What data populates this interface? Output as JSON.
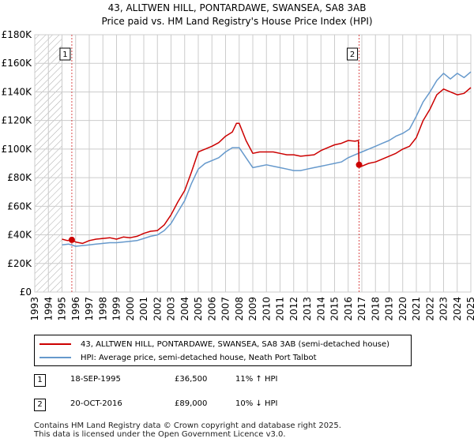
{
  "title": {
    "line1": "43, ALLTWEN HILL, PONTARDAWE, SWANSEA, SA8 3AB",
    "line2": "Price paid vs. HM Land Registry's House Price Index (HPI)"
  },
  "colors": {
    "property": "#cc0000",
    "hpi": "#6699cc",
    "grid": "#cccccc",
    "marker_line": "#cc0000",
    "hatch": "#999999"
  },
  "chart_data": {
    "type": "line",
    "title": "Price paid vs. HM Land Registry's House Price Index (HPI)",
    "xlabel": "",
    "ylabel": "",
    "xlim": [
      1993,
      2025
    ],
    "ylim": [
      0,
      180000
    ],
    "grid": true,
    "y_ticks": [
      {
        "value": 0,
        "label": "£0"
      },
      {
        "value": 20000,
        "label": "£20K"
      },
      {
        "value": 40000,
        "label": "£40K"
      },
      {
        "value": 60000,
        "label": "£60K"
      },
      {
        "value": 80000,
        "label": "£80K"
      },
      {
        "value": 100000,
        "label": "£100K"
      },
      {
        "value": 120000,
        "label": "£120K"
      },
      {
        "value": 140000,
        "label": "£140K"
      },
      {
        "value": 160000,
        "label": "£160K"
      },
      {
        "value": 180000,
        "label": "£180K"
      }
    ],
    "x_ticks": [
      "1993",
      "1994",
      "1995",
      "1996",
      "1997",
      "1998",
      "1999",
      "2000",
      "2001",
      "2002",
      "2003",
      "2004",
      "2005",
      "2006",
      "2007",
      "2008",
      "2009",
      "2010",
      "2011",
      "2012",
      "2013",
      "2014",
      "2015",
      "2016",
      "2017",
      "2018",
      "2019",
      "2020",
      "2021",
      "2022",
      "2023",
      "2024",
      "2025"
    ],
    "hatched_until": 1995.0,
    "series": [
      {
        "name": "43, ALLTWEN HILL, PONTARDAWE, SWANSEA, SA8 3AB (semi-detached house)",
        "color": "#cc0000",
        "x": [
          1995.0,
          1995.4,
          1995.72,
          1996.0,
          1996.5,
          1997.0,
          1997.5,
          1998.0,
          1998.5,
          1999.0,
          1999.5,
          2000.0,
          2000.5,
          2001.0,
          2001.5,
          2002.0,
          2002.5,
          2003.0,
          2003.5,
          2004.0,
          2004.5,
          2005.0,
          2005.5,
          2006.0,
          2006.5,
          2007.0,
          2007.5,
          2007.8,
          2008.0,
          2008.5,
          2009.0,
          2009.5,
          2010.0,
          2010.5,
          2011.0,
          2011.5,
          2012.0,
          2012.5,
          2013.0,
          2013.5,
          2014.0,
          2014.5,
          2015.0,
          2015.5,
          2016.0,
          2016.5,
          2016.75,
          2016.8,
          2017.0,
          2017.5,
          2018.0,
          2018.5,
          2019.0,
          2019.5,
          2020.0,
          2020.5,
          2021.0,
          2021.5,
          2022.0,
          2022.5,
          2023.0,
          2023.5,
          2024.0,
          2024.5,
          2025.0
        ],
        "values": [
          37000,
          36000,
          36500,
          35000,
          34000,
          36000,
          37000,
          37500,
          38000,
          37000,
          38500,
          38000,
          39000,
          41000,
          42500,
          43000,
          47000,
          54000,
          63000,
          71000,
          84000,
          98000,
          100000,
          102000,
          104500,
          109000,
          112000,
          118000,
          118000,
          106000,
          97000,
          98000,
          98000,
          98000,
          97000,
          96000,
          96000,
          95000,
          95500,
          96000,
          99000,
          101000,
          103000,
          104000,
          106000,
          105500,
          106000,
          89000,
          88000,
          90000,
          91000,
          93000,
          95000,
          97000,
          100000,
          102000,
          108000,
          120000,
          128000,
          138000,
          142000,
          140000,
          138000,
          139000,
          143000
        ]
      },
      {
        "name": "HPI: Average price, semi-detached house, Neath Port Talbot",
        "color": "#6699cc",
        "x": [
          1995.0,
          1995.5,
          1996.0,
          1996.5,
          1997.0,
          1997.5,
          1998.0,
          1998.5,
          1999.0,
          1999.5,
          2000.0,
          2000.5,
          2001.0,
          2001.5,
          2002.0,
          2002.5,
          2003.0,
          2003.5,
          2004.0,
          2004.5,
          2005.0,
          2005.5,
          2006.0,
          2006.5,
          2007.0,
          2007.5,
          2008.0,
          2008.5,
          2009.0,
          2009.5,
          2010.0,
          2010.5,
          2011.0,
          2011.5,
          2012.0,
          2012.5,
          2013.0,
          2013.5,
          2014.0,
          2014.5,
          2015.0,
          2015.5,
          2016.0,
          2016.5,
          2017.0,
          2017.5,
          2018.0,
          2018.5,
          2019.0,
          2019.5,
          2020.0,
          2020.5,
          2021.0,
          2021.5,
          2022.0,
          2022.5,
          2023.0,
          2023.5,
          2024.0,
          2024.5,
          2025.0
        ],
        "values": [
          33000,
          33500,
          32000,
          32500,
          33000,
          33500,
          34000,
          34500,
          34500,
          35000,
          35500,
          36000,
          37500,
          39000,
          40000,
          43000,
          48000,
          56000,
          64000,
          76000,
          86000,
          90000,
          92000,
          94000,
          98000,
          101000,
          101000,
          94000,
          87000,
          88000,
          89000,
          88000,
          87000,
          86000,
          85000,
          85000,
          86000,
          87000,
          88000,
          89000,
          90000,
          91000,
          94000,
          96000,
          98000,
          100000,
          102000,
          104000,
          106000,
          109000,
          111000,
          114000,
          123000,
          133000,
          140000,
          148000,
          153000,
          149000,
          153000,
          150000,
          154000
        ]
      }
    ],
    "annotations": [
      {
        "label": "1",
        "x": 1995.72,
        "value": 36500
      },
      {
        "label": "2",
        "x": 2016.8,
        "value": 89000
      }
    ]
  },
  "legend": {
    "items": [
      {
        "label": "43, ALLTWEN HILL, PONTARDAWE, SWANSEA, SA8 3AB (semi-detached house)"
      },
      {
        "label": "HPI: Average price, semi-detached house, Neath Port Talbot"
      }
    ]
  },
  "transactions": [
    {
      "num": "1",
      "date": "18-SEP-1995",
      "price": "£36,500",
      "hpi": "11% ↑ HPI"
    },
    {
      "num": "2",
      "date": "20-OCT-2016",
      "price": "£89,000",
      "hpi": "10% ↓ HPI"
    }
  ],
  "footer": {
    "line1": "Contains HM Land Registry data © Crown copyright and database right 2025.",
    "line2": "This data is licensed under the Open Government Licence v3.0."
  }
}
